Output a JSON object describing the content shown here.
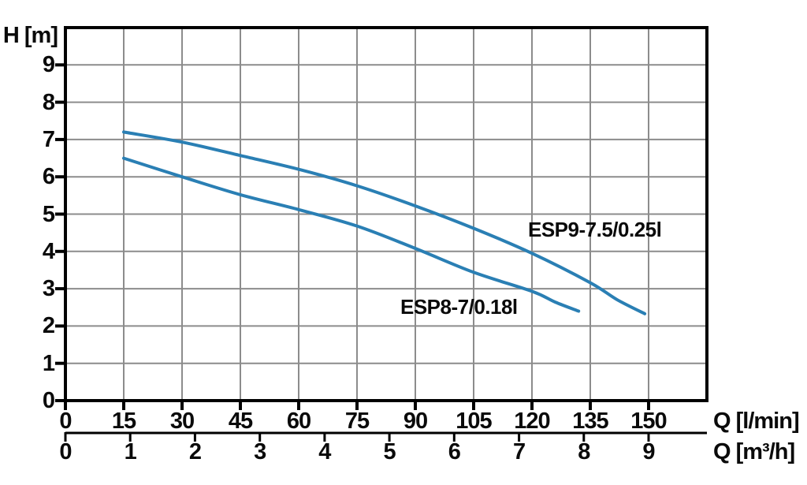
{
  "chart_data": {
    "type": "line",
    "title": "",
    "ylabel": "H [m]",
    "xlabel_primary": "Q [l/min]",
    "xlabel_secondary": "Q [m³/h]",
    "y_axis": {
      "unit": "m",
      "ticks": [
        0,
        1,
        2,
        3,
        4,
        5,
        6,
        7,
        8,
        9
      ],
      "lim": [
        0,
        10
      ],
      "grid": true
    },
    "x_axis_primary": {
      "unit": "l/min",
      "ticks": [
        0,
        15,
        30,
        45,
        60,
        75,
        90,
        105,
        120,
        135,
        150
      ],
      "lim": [
        0,
        165
      ],
      "grid": true
    },
    "x_axis_secondary": {
      "unit": "m3/h",
      "ticks": [
        0,
        1,
        2,
        3,
        4,
        5,
        6,
        7,
        8,
        9
      ],
      "lmin_per_unit": 16.6667
    },
    "legend_position": "inline-labels",
    "series": [
      {
        "name": "ESP9-7.5/0.25l",
        "points_q_lmin_h_m": [
          [
            15,
            7.2
          ],
          [
            30,
            6.93
          ],
          [
            45,
            6.57
          ],
          [
            60,
            6.2
          ],
          [
            75,
            5.76
          ],
          [
            90,
            5.22
          ],
          [
            105,
            4.62
          ],
          [
            120,
            3.95
          ],
          [
            135,
            3.16
          ],
          [
            142,
            2.7
          ],
          [
            149,
            2.33
          ]
        ]
      },
      {
        "name": "ESP8-7/0.18l",
        "points_q_lmin_h_m": [
          [
            15,
            6.5
          ],
          [
            30,
            6.0
          ],
          [
            45,
            5.52
          ],
          [
            60,
            5.12
          ],
          [
            75,
            4.68
          ],
          [
            90,
            4.08
          ],
          [
            105,
            3.44
          ],
          [
            120,
            2.93
          ],
          [
            126,
            2.64
          ],
          [
            132,
            2.4
          ]
        ]
      }
    ],
    "colors": {
      "curve": "#2a7fb4",
      "grid": "#8c8c8c",
      "axis": "#000000",
      "text": "#0a0a0a"
    }
  }
}
